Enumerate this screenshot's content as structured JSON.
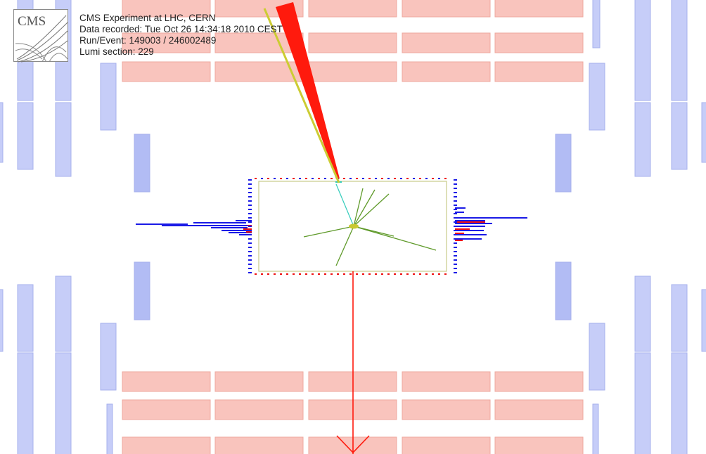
{
  "logo": {
    "text": "CMS"
  },
  "event_info": {
    "experiment": "CMS Experiment at LHC, CERN",
    "recorded": "Data recorded: Tue Oct 26 14:34:18 2010 CEST",
    "run_event": "Run/Event: 149003 / 246002489",
    "lumi": "Lumi section: 229"
  },
  "colors": {
    "background": "#ffffff",
    "hcal_block_fill": "#f9c4bd",
    "hcal_block_stroke": "#eea89f",
    "muon_chamber_fill": "#c6cdf8",
    "muon_chamber_stroke": "#a7b1ec",
    "inner_chamber_fill": "#b2bcf4",
    "tracker_outline": "#c8cc8a",
    "track": "#5f9a2a",
    "jet": "#ff1a0d",
    "met": "#ff1a0d",
    "muon_track": "#cccc33",
    "ecal_deposit_blue": "#1a1ae6",
    "ecal_deposit_red": "#ee1010"
  }
}
